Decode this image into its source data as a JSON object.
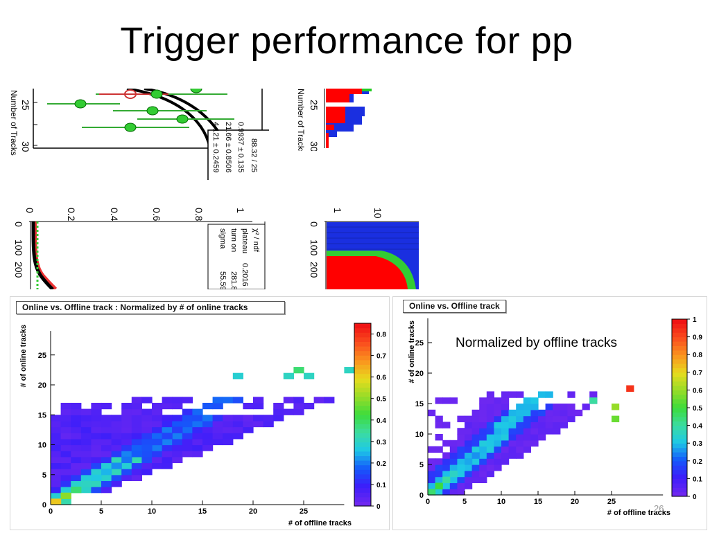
{
  "slide": {
    "title": "Trigger performance for pp",
    "page_number": "26"
  },
  "fragments": {
    "top_left": {
      "fit_box": [
        "88.32 / 25",
        "0.9937 ± 0.135",
        "21.66 ± 0.8506",
        "4.121 ± 0.2459"
      ],
      "axis_title": "Number of Tracks",
      "ticks": [
        "25",
        "30"
      ]
    },
    "top_right": {
      "axis_title": "Number of Tracks",
      "ticks": [
        "25",
        "30"
      ]
    },
    "mid_left": {
      "ticks": [
        "0",
        "0.2",
        "0.4",
        "0.6",
        "0.8",
        "1"
      ],
      "y_ticks": [
        "0",
        "100",
        "200"
      ],
      "fit_labels": [
        "χ² / ndf",
        "plateau",
        "turn on",
        "sigma"
      ],
      "fit_values": [
        "0.2016 ± 0",
        "281.8",
        "55.59"
      ]
    },
    "mid_right": {
      "ticks": [
        "0",
        "1",
        "10"
      ],
      "y_ticks": [
        "0",
        "100",
        "200"
      ]
    }
  },
  "chart_data": [
    {
      "type": "heatmap",
      "title": "Online vs. Offline track : Normalized by # of online tracks",
      "xlabel": "# of offline tracks",
      "ylabel": "# of online tracks",
      "xlim": [
        0,
        29
      ],
      "ylim": [
        0,
        29
      ],
      "x_ticks": [
        0,
        5,
        10,
        15,
        20,
        25
      ],
      "y_ticks": [
        0,
        5,
        10,
        15,
        20,
        25
      ],
      "colorbar": {
        "min": 0,
        "max": 0.85,
        "ticks": [
          0,
          0.1,
          0.2,
          0.3,
          0.4,
          0.5,
          0.6,
          0.7,
          0.8
        ]
      },
      "z_description": "fraction normalized per online-track bin",
      "cells_note": "diagonal band x≈y; peak at (0,0)",
      "diag_values": [
        [
          0,
          0,
          0.62
        ],
        [
          1,
          1,
          0.5
        ],
        [
          2,
          2,
          0.38
        ],
        [
          3,
          3,
          0.3
        ],
        [
          4,
          4,
          0.26
        ],
        [
          5,
          5,
          0.24
        ],
        [
          6,
          6,
          0.21
        ],
        [
          7,
          7,
          0.19
        ],
        [
          8,
          8,
          0.17
        ],
        [
          9,
          9,
          0.16
        ],
        [
          10,
          10,
          0.15
        ],
        [
          11,
          11,
          0.14
        ],
        [
          12,
          12,
          0.13
        ]
      ],
      "outliers": [
        [
          18,
          21,
          0.28
        ],
        [
          23,
          21,
          0.3
        ],
        [
          25,
          21,
          0.3
        ],
        [
          24,
          22,
          0.38
        ],
        [
          29,
          22,
          0.3
        ]
      ]
    },
    {
      "type": "heatmap",
      "title": "Online vs. Offline track",
      "annotation": "Normalized by offline tracks",
      "xlabel": "# of offline tracks",
      "ylabel": "# of online tracks",
      "xlim": [
        0,
        32
      ],
      "ylim": [
        0,
        29
      ],
      "x_ticks": [
        0,
        5,
        10,
        15,
        20,
        25
      ],
      "y_ticks": [
        0,
        5,
        10,
        15,
        20,
        25
      ],
      "colorbar": {
        "min": 0,
        "max": 1,
        "ticks": [
          0,
          0.1,
          0.2,
          0.3,
          0.4,
          0.5,
          0.6,
          0.7,
          0.8,
          0.9,
          1
        ]
      },
      "z_description": "fraction normalized per offline-track bin",
      "diag_values": [
        [
          0,
          0,
          0.45
        ],
        [
          1,
          1,
          0.5
        ],
        [
          2,
          2,
          0.4
        ],
        [
          3,
          3,
          0.35
        ],
        [
          4,
          4,
          0.3
        ],
        [
          5,
          5,
          0.27
        ],
        [
          6,
          6,
          0.25
        ]
      ],
      "outliers": [
        [
          27,
          17,
          0.95
        ],
        [
          22,
          15,
          0.4
        ],
        [
          25,
          14,
          0.6
        ],
        [
          25,
          12,
          0.55
        ]
      ]
    }
  ]
}
